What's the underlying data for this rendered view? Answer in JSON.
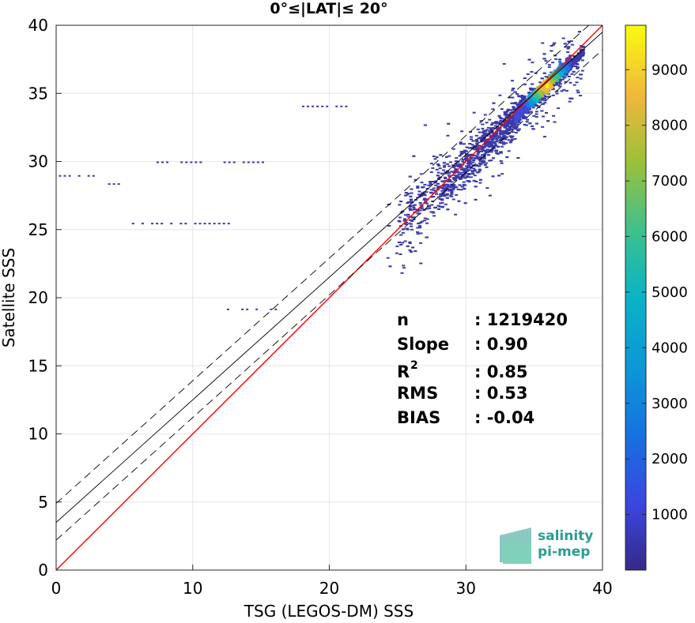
{
  "chart_data": {
    "type": "heatmap",
    "title": "0°≤|LAT|≤ 20°",
    "xlabel": "TSG (LEGOS-DM) SSS",
    "ylabel": "Satellite SSS",
    "xlim": [
      0,
      40
    ],
    "ylim": [
      0,
      40
    ],
    "xticks": [
      "0",
      "10",
      "20",
      "30",
      "40"
    ],
    "yticks": [
      "0",
      "5",
      "10",
      "15",
      "20",
      "25",
      "30",
      "35",
      "40"
    ],
    "grid": true,
    "colorbar": {
      "range": [
        0,
        9800
      ],
      "ticks": [
        "1000",
        "2000",
        "3000",
        "4000",
        "5000",
        "6000",
        "7000",
        "8000",
        "9000"
      ],
      "colormap": "parula"
    },
    "lines": [
      {
        "kind": "one-to-one",
        "color": "#ff0000",
        "intercept": 0,
        "slope": 1.0
      },
      {
        "kind": "regression",
        "color": "#000000",
        "intercept": 3.5,
        "slope": 0.9
      },
      {
        "kind": "regression-upper",
        "color": "#000000",
        "dashed": true,
        "intercept": 4.9,
        "slope": 0.9
      },
      {
        "kind": "regression-lower",
        "color": "#000000",
        "dashed": true,
        "intercept": 2.2,
        "slope": 0.9
      }
    ],
    "stats": [
      {
        "label": "n",
        "value": ": 1219420"
      },
      {
        "label": "Slope",
        "value": ": 0.90"
      },
      {
        "label": "R",
        "sup": "2",
        "value": ": 0.85"
      },
      {
        "label": "RMS",
        "value": ": 0.53"
      },
      {
        "label": "BIAS",
        "value": ": -0.04"
      }
    ],
    "density_core": {
      "x_range": [
        33.5,
        37.5
      ],
      "peak": [
        35.8,
        35.6
      ]
    },
    "outlier_rows": [
      {
        "y": 29.0,
        "x": [
          0.2,
          3.5
        ]
      },
      {
        "y": 28.4,
        "x": [
          3.8,
          5.0
        ]
      },
      {
        "y": 25.5,
        "x": [
          5.2,
          13.5
        ]
      },
      {
        "y": 30.0,
        "x": [
          7.0,
          16.0
        ]
      },
      {
        "y": 19.2,
        "x": [
          12.5,
          16.0
        ]
      },
      {
        "y": 34.1,
        "x": [
          18.0,
          21.5
        ]
      }
    ]
  },
  "logo": {
    "line1": "salinity",
    "line2": "pi-mep"
  }
}
